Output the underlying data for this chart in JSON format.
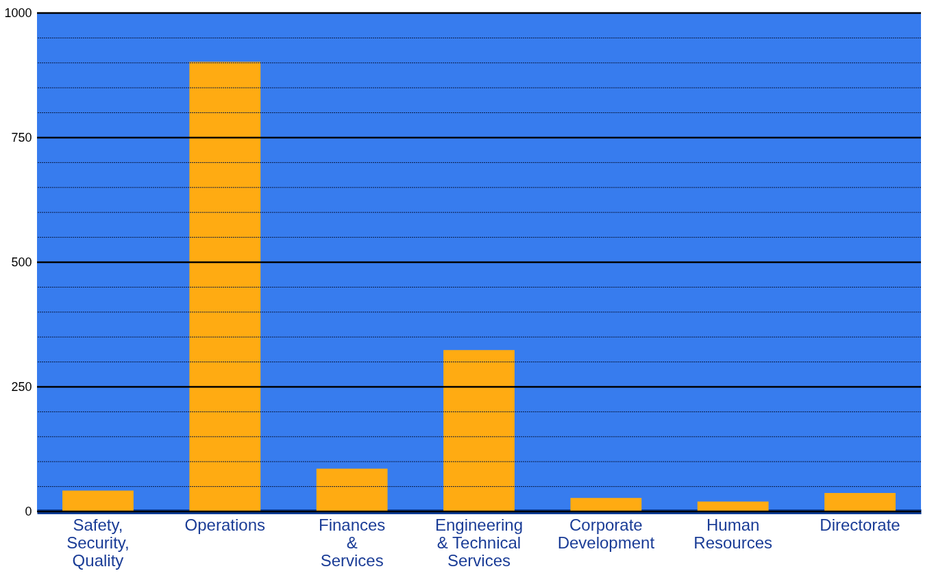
{
  "chart_data": {
    "type": "bar",
    "categories": [
      "Safety,\nSecurity,\nQuality",
      "Operations",
      "Finances\n&\nServices",
      "Engineering\n& Technical\nServices",
      "Corporate\nDevelopment",
      "Human\nResources",
      "Directorate"
    ],
    "values": [
      42,
      902,
      86,
      324,
      27,
      20,
      37
    ],
    "color": "#ffab12",
    "ylim": [
      0,
      1000
    ],
    "yticks": [
      0,
      {
        "value": 50,
        "label": null
      },
      {
        "value": 100,
        "label": null
      },
      {
        "value": 150,
        "label": null
      },
      {
        "value": 200,
        "label": null
      },
      250,
      {
        "value": 300,
        "label": null
      },
      {
        "value": 350,
        "label": null
      },
      {
        "value": 400,
        "label": null
      },
      {
        "value": 450,
        "label": null
      },
      500,
      {
        "value": 550,
        "label": null
      },
      {
        "value": 600,
        "label": null
      },
      {
        "value": 650,
        "label": null
      },
      {
        "value": 700,
        "label": null
      },
      750,
      {
        "value": 800,
        "label": null
      },
      {
        "value": 850,
        "label": null
      },
      {
        "value": 900,
        "label": null
      },
      {
        "value": 950,
        "label": null
      },
      1000
    ],
    "grid": true
  }
}
